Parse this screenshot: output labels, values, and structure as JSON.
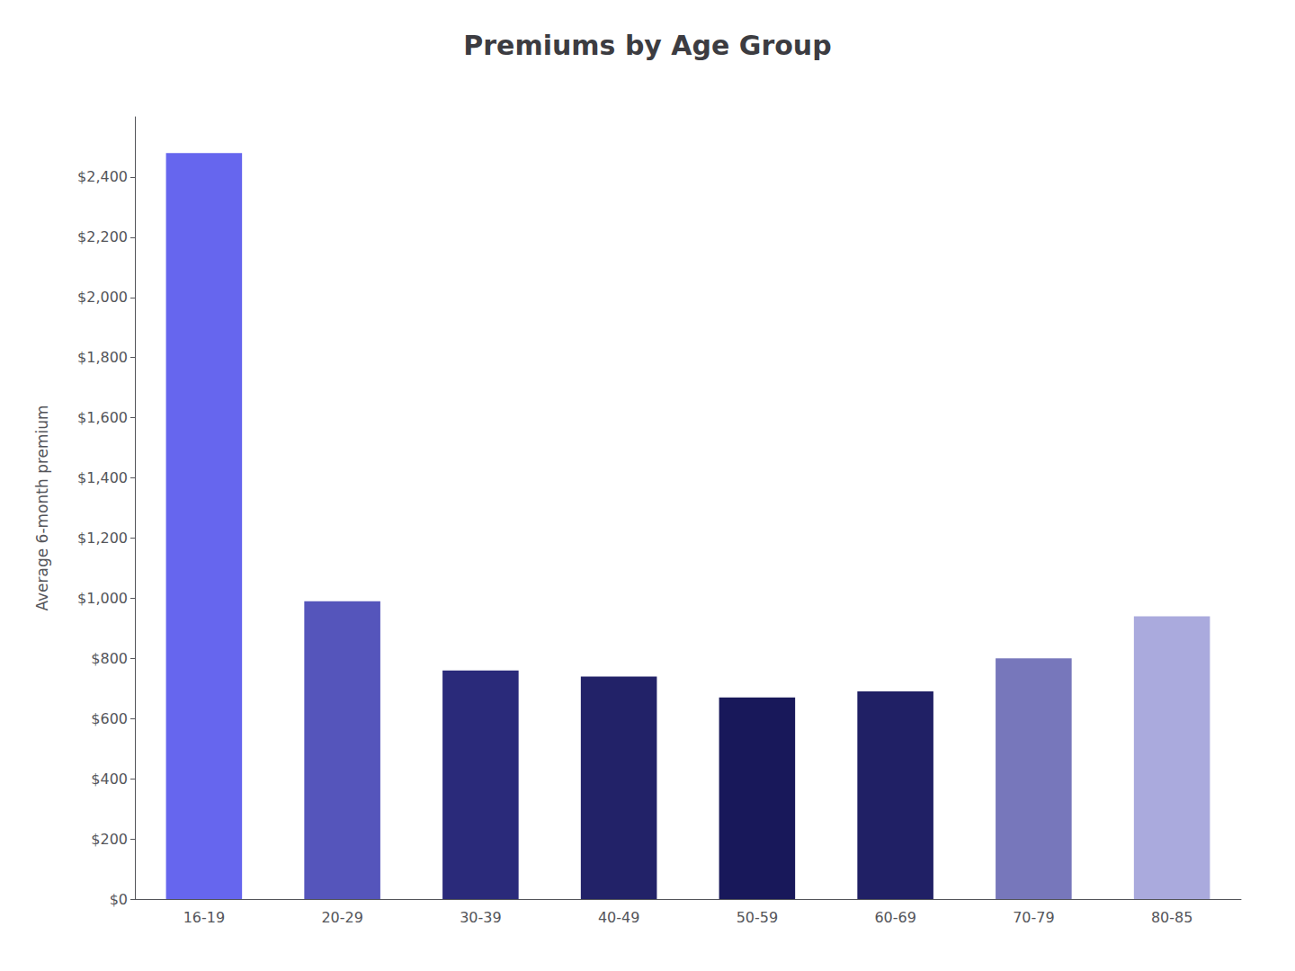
{
  "chart_data": {
    "type": "bar",
    "title": "Premiums by Age Group",
    "categories": [
      "16-19",
      "20-29",
      "30-39",
      "40-49",
      "50-59",
      "60-69",
      "70-79",
      "80-85"
    ],
    "values": [
      2480,
      990,
      760,
      740,
      670,
      690,
      800,
      940
    ],
    "colors": [
      "#6666ee",
      "#5555bb",
      "#2a2a7a",
      "#222268",
      "#18185a",
      "#202065",
      "#7777bb",
      "#aaaadd"
    ],
    "ylabel": "Average 6-month premium",
    "ylim": [
      0,
      2600
    ],
    "yticks": [
      {
        "value": 0,
        "label": "$0"
      },
      {
        "value": 200,
        "label": "$200"
      },
      {
        "value": 400,
        "label": "$400"
      },
      {
        "value": 600,
        "label": "$600"
      },
      {
        "value": 800,
        "label": "$800"
      },
      {
        "value": 1000,
        "label": "$1,000"
      },
      {
        "value": 1200,
        "label": "$1,200"
      },
      {
        "value": 1400,
        "label": "$1,400"
      },
      {
        "value": 1600,
        "label": "$1,600"
      },
      {
        "value": 1800,
        "label": "$1,800"
      },
      {
        "value": 2000,
        "label": "$2,000"
      },
      {
        "value": 2200,
        "label": "$2,200"
      },
      {
        "value": 2400,
        "label": "$2,400"
      }
    ],
    "grid": false
  }
}
